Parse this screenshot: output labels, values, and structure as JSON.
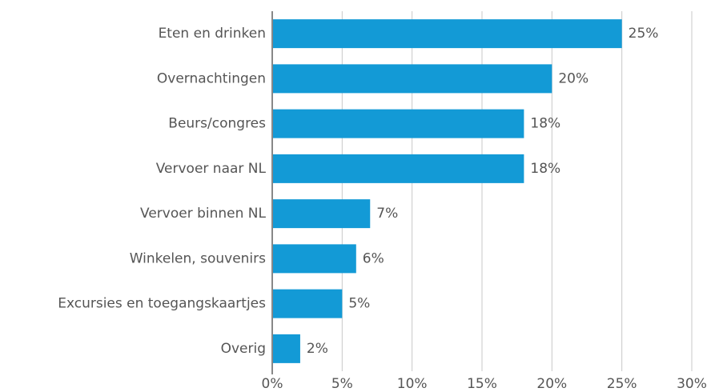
{
  "chart_data": {
    "type": "bar",
    "orientation": "horizontal",
    "categories": [
      "Eten en drinken",
      "Overnachtingen",
      "Beurs/congres",
      "Vervoer naar NL",
      "Vervoer binnen NL",
      "Winkelen, souvenirs",
      "Excursies en toegangskaartjes",
      "Overig"
    ],
    "values": [
      25,
      20,
      18,
      18,
      7,
      6,
      5,
      2
    ],
    "value_labels": [
      "25%",
      "20%",
      "18%",
      "18%",
      "7%",
      "6%",
      "5%",
      "2%"
    ],
    "color": "#139ad6",
    "xlim": [
      0,
      30
    ],
    "xticks": [
      {
        "value": 0,
        "label": "0%"
      },
      {
        "value": 5,
        "label": "5%"
      },
      {
        "value": 10,
        "label": "10%"
      },
      {
        "value": 15,
        "label": "15%"
      },
      {
        "value": 20,
        "label": "20%"
      },
      {
        "value": 25,
        "label": "25%"
      },
      {
        "value": 30,
        "label": "30%"
      }
    ],
    "grid": true
  }
}
